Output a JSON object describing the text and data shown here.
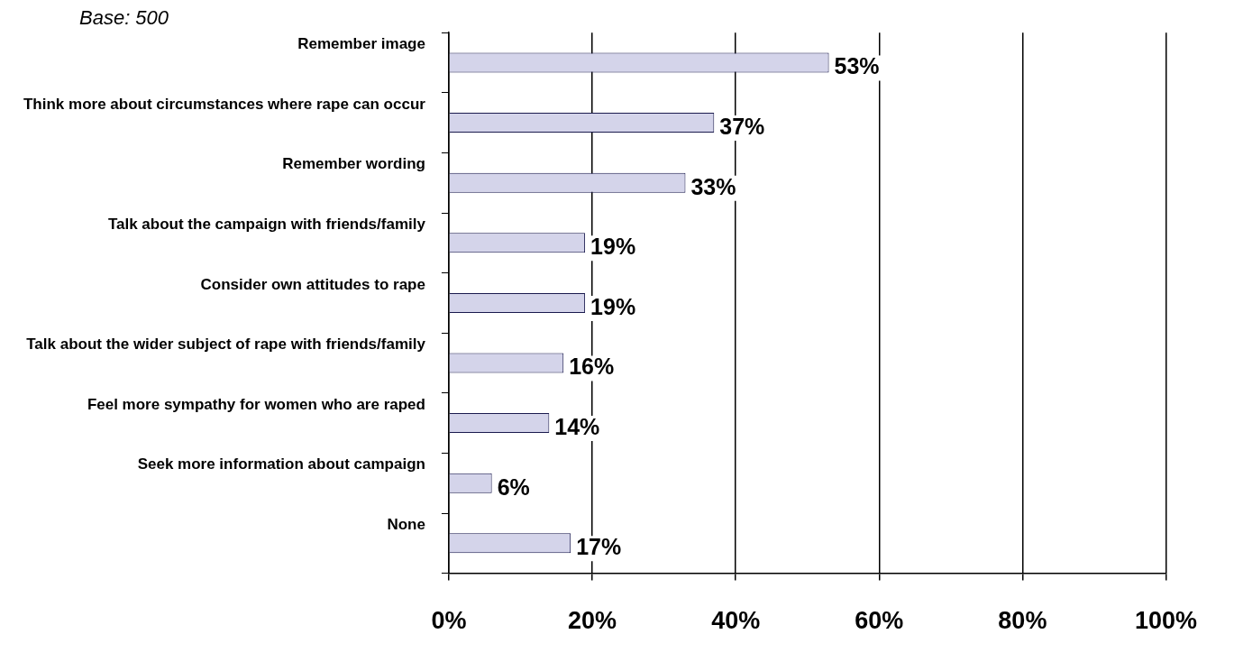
{
  "chart_data": {
    "type": "bar",
    "orientation": "horizontal",
    "annotations": [
      "Base: 500"
    ],
    "categories": [
      "Remember image",
      "Think more about circumstances where rape can occur",
      "Remember wording",
      "Talk about the campaign with friends/family",
      "Consider own attitudes to rape",
      "Talk about the wider subject of rape with friends/family",
      "Feel more sympathy for women who are raped",
      "Seek more information about campaign",
      "None"
    ],
    "values": [
      53,
      37,
      33,
      19,
      19,
      16,
      14,
      6,
      17
    ],
    "color": "#d4d4ea",
    "value_labels": [
      "53%",
      "37%",
      "33%",
      "19%",
      "19%",
      "16%",
      "14%",
      "6%",
      "17%"
    ],
    "xlim": [
      0,
      100
    ],
    "xticks": [
      {
        "value": 0,
        "label": "0%"
      },
      {
        "value": 20,
        "label": "20%"
      },
      {
        "value": 40,
        "label": "40%"
      },
      {
        "value": 60,
        "label": "60%"
      },
      {
        "value": 80,
        "label": "80%"
      },
      {
        "value": 100,
        "label": "100%"
      }
    ],
    "grid": "x",
    "legend": false
  }
}
